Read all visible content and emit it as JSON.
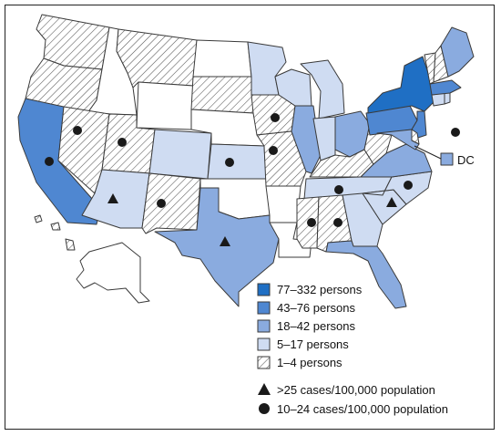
{
  "colors": {
    "c77_332": "#1f6fc4",
    "c43_76": "#4f87d1",
    "c18_42": "#8aabdf",
    "c5_17": "#cfdcf2",
    "c1_4": "hatched",
    "c0": "#ffffff",
    "outline": "#3a3a3a"
  },
  "map_data": {
    "legend": {
      "bins": [
        {
          "label": "77–332 persons",
          "color": "#1f6fc4"
        },
        {
          "label": "43–76 persons",
          "color": "#4f87d1"
        },
        {
          "label": "18–42 persons",
          "color": "#8aabdf"
        },
        {
          "label": "5–17 persons",
          "color": "#cfdcf2"
        },
        {
          "label": "1–4 persons",
          "color": "hatched"
        }
      ],
      "markers": [
        {
          "symbol": "triangle",
          "label": ">25 cases/100,000 population"
        },
        {
          "symbol": "circle",
          "label": "10–24 cases/100,000 population"
        }
      ]
    },
    "dc_label": "DC",
    "states": {
      "WA": "1-4",
      "OR": "1-4",
      "CA": "43-76",
      "ID": "0",
      "NV": "1-4",
      "UT": "1-4",
      "AZ": "5-17",
      "MT": "1-4",
      "WY": "0",
      "CO": "5-17",
      "NM": "1-4",
      "ND": "0",
      "SD": "1-4",
      "NE": "0",
      "KS": "5-17",
      "OK": "0",
      "TX": "18-42",
      "MN": "5-17",
      "IA": "1-4",
      "MO": "1-4",
      "AR": "0",
      "LA": "0",
      "WI": "5-17",
      "IL": "18-42",
      "MI": "5-17",
      "IN": "5-17",
      "OH": "18-42",
      "KY": "1-4",
      "TN": "5-17",
      "MS": "1-4",
      "AL": "1-4",
      "GA": "5-17",
      "FL": "18-42",
      "SC": "5-17",
      "NC": "5-17",
      "VA": "18-42",
      "WV": "1-4",
      "PA": "43-76",
      "NY": "77-332",
      "NJ": "43-76",
      "DE": "1-4",
      "MD": "18-42",
      "CT": "5-17",
      "RI": "5-17",
      "MA": "43-76",
      "VT": "1-4",
      "NH": "1-4",
      "ME": "18-42",
      "AK": "0",
      "HI": "1-4",
      "DC": "18-42"
    },
    "circle_states": [
      "CA",
      "NV",
      "UT",
      "NM",
      "KS",
      "IA",
      "MO",
      "MS",
      "AL",
      "TN",
      "NC",
      "DE"
    ],
    "triangle_states": [
      "AZ",
      "TX",
      "SC"
    ]
  }
}
